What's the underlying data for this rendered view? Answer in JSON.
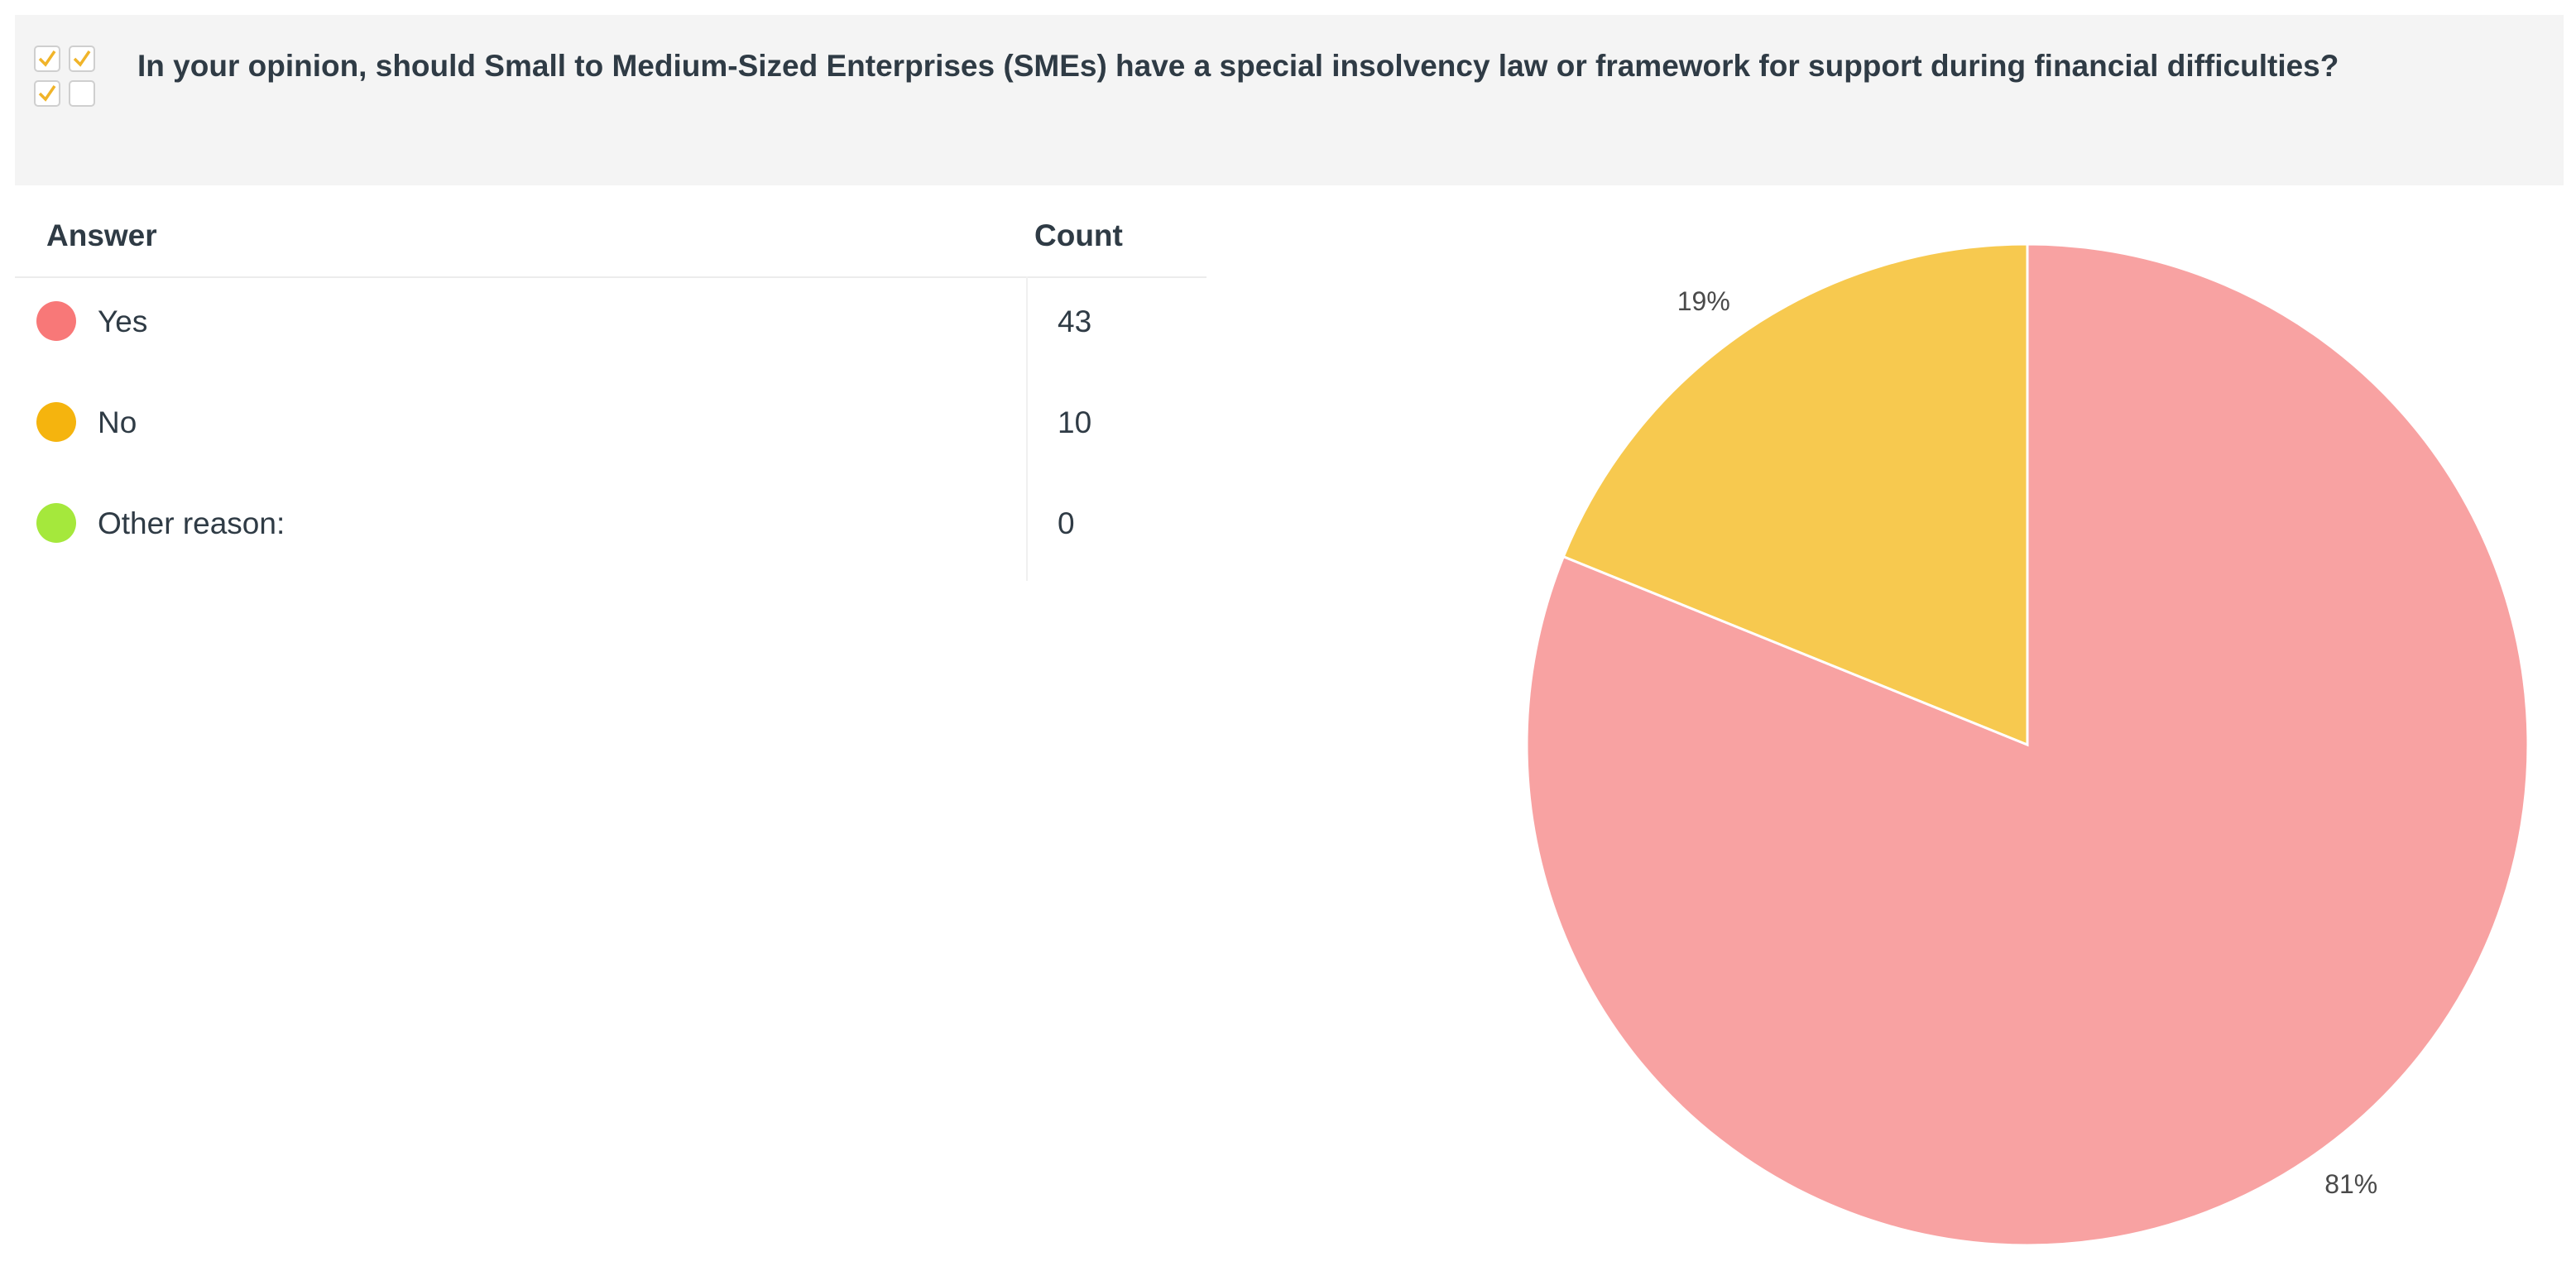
{
  "question": {
    "text": "In your opinion, should Small to Medium-Sized Enterprises (SMEs) have a special insolvency law or framework for support during financial difficulties?",
    "icon": "checkbox-multiple-choice-icon"
  },
  "table": {
    "headers": {
      "answer": "Answer",
      "count": "Count"
    },
    "rows": [
      {
        "label": "Yes",
        "count": "43",
        "color": "#f87878"
      },
      {
        "label": "No",
        "count": "10",
        "color": "#f5b40e"
      },
      {
        "label": "Other reason:",
        "count": "0",
        "color": "#a5e83c"
      }
    ]
  },
  "chart_data": {
    "type": "pie",
    "categories": [
      "Yes",
      "No",
      "Other reason:"
    ],
    "values": [
      43,
      10,
      0
    ],
    "colors": [
      "#f8a2a2",
      "#f7c94f",
      "#a5e83c"
    ],
    "slice_labels": [
      "81%",
      "19%",
      ""
    ],
    "start_angle": "top, clockwise",
    "legend": "none"
  }
}
